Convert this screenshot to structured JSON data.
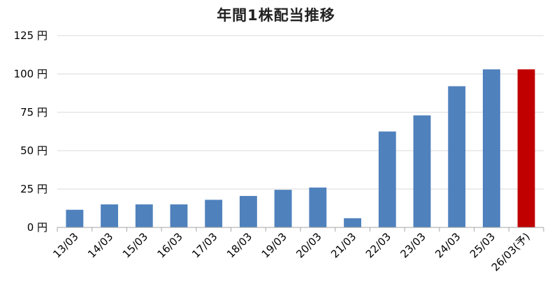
{
  "chart_data": {
    "type": "bar",
    "title": "年間1株配当推移",
    "xlabel": "",
    "ylabel": "",
    "categories": [
      "13/03",
      "14/03",
      "15/03",
      "16/03",
      "17/03",
      "18/03",
      "19/03",
      "20/03",
      "21/03",
      "22/03",
      "23/03",
      "24/03",
      "25/03",
      "26/03(予)"
    ],
    "values": [
      11.5,
      15,
      15,
      15,
      18,
      20.5,
      24.5,
      26,
      6,
      62.5,
      73,
      92,
      103,
      103
    ],
    "ylim": [
      0,
      125
    ],
    "yticks": [
      0,
      25,
      50,
      75,
      100,
      125
    ],
    "ytick_labels": [
      "0 円",
      "25 円",
      "50 円",
      "75 円",
      "100 円",
      "125 円"
    ],
    "grid": true,
    "legend": "none",
    "colors": {
      "actual": "#4f81bd",
      "forecast": "#c00000",
      "grid": "#d9d9d9",
      "axis": "#a6a6a6"
    },
    "forecast_index": 13
  }
}
